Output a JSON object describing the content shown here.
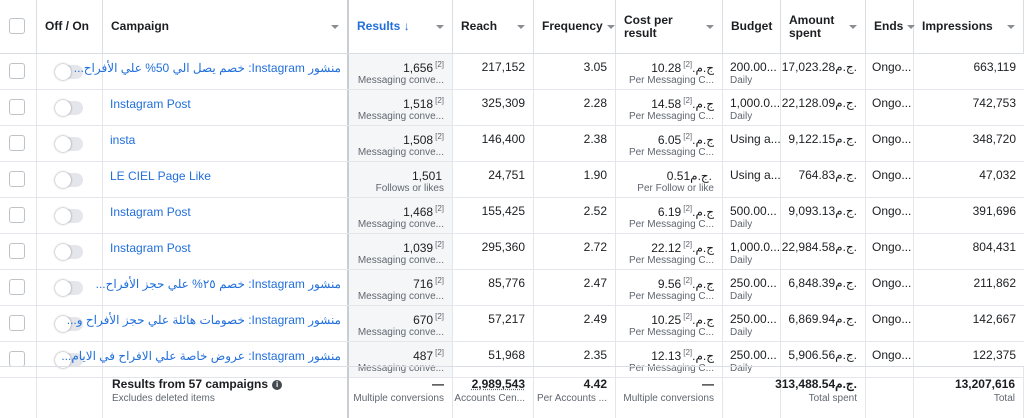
{
  "headers": {
    "off_on": "Off / On",
    "campaign": "Campaign",
    "results": "Results",
    "results_arrow": "↓",
    "reach": "Reach",
    "frequency": "Frequency",
    "cost_per_result": "Cost per result",
    "budget": "Budget",
    "amount_spent": "Amount spent",
    "ends": "Ends",
    "impressions": "Impressions"
  },
  "rows": [
    {
      "campaign": "منشور Instagram: خصم يصل الي 50% علي الأفراح...",
      "rtl": true,
      "results": "1,656",
      "results_sup": "[2]",
      "results_sub": "Messaging conve...",
      "reach": "217,152",
      "frequency": "3.05",
      "cpr": "10.28ج.م.",
      "cpr_sup": "[2]",
      "cpr_sub": "Per Messaging C...",
      "budget": "200.00...",
      "budget_sub": "Daily",
      "amount": "17,023.28ج.م.",
      "ends": "Ongo...",
      "impressions": "663,119",
      "dotted": true
    },
    {
      "campaign": "Instagram Post",
      "rtl": false,
      "results": "1,518",
      "results_sup": "[2]",
      "results_sub": "Messaging conve...",
      "reach": "325,309",
      "frequency": "2.28",
      "cpr": "14.58ج.م.",
      "cpr_sup": "[2]",
      "cpr_sub": "Per Messaging C...",
      "budget": "1,000.0...",
      "budget_sub": "Daily",
      "amount": "22,128.09ج.م.",
      "ends": "Ongo...",
      "impressions": "742,753",
      "dotted": true
    },
    {
      "campaign": "insta",
      "rtl": false,
      "results": "1,508",
      "results_sup": "[2]",
      "results_sub": "Messaging conve...",
      "reach": "146,400",
      "frequency": "2.38",
      "cpr": "6.05ج.م.",
      "cpr_sup": "[2]",
      "cpr_sub": "Per Messaging C...",
      "budget": "Using a...",
      "budget_sub": "",
      "amount": "9,122.15ج.م.",
      "ends": "Ongo...",
      "impressions": "348,720",
      "dotted": true
    },
    {
      "campaign": "LE CIEL Page Like",
      "rtl": false,
      "results": "1,501",
      "results_sup": "",
      "results_sub": "Follows or likes",
      "reach": "24,751",
      "frequency": "1.90",
      "cpr": "0.51ج.م.",
      "cpr_sup": "",
      "cpr_sub": "Per Follow or like",
      "budget": "Using a...",
      "budget_sub": "",
      "amount": "764.83ج.م.",
      "ends": "Ongo...",
      "impressions": "47,032",
      "dotted": false
    },
    {
      "campaign": "Instagram Post",
      "rtl": false,
      "results": "1,468",
      "results_sup": "[2]",
      "results_sub": "Messaging conve...",
      "reach": "155,425",
      "frequency": "2.52",
      "cpr": "6.19ج.م.",
      "cpr_sup": "[2]",
      "cpr_sub": "Per Messaging C...",
      "budget": "500.00...",
      "budget_sub": "Daily",
      "amount": "9,093.13ج.م.",
      "ends": "Ongo...",
      "impressions": "391,696",
      "dotted": true
    },
    {
      "campaign": "Instagram Post",
      "rtl": false,
      "results": "1,039",
      "results_sup": "[2]",
      "results_sub": "Messaging conve...",
      "reach": "295,360",
      "frequency": "2.72",
      "cpr": "22.12ج.م.",
      "cpr_sup": "[2]",
      "cpr_sub": "Per Messaging C...",
      "budget": "1,000.0...",
      "budget_sub": "Daily",
      "amount": "22,984.58ج.م.",
      "ends": "Ongo...",
      "impressions": "804,431",
      "dotted": true
    },
    {
      "campaign": "منشور Instagram: خصم ٢٥% علي حجز الأفراح...",
      "rtl": true,
      "results": "716",
      "results_sup": "[2]",
      "results_sub": "Messaging conve...",
      "reach": "85,776",
      "frequency": "2.47",
      "cpr": "9.56ج.م.",
      "cpr_sup": "[2]",
      "cpr_sub": "Per Messaging C...",
      "budget": "250.00...",
      "budget_sub": "Daily",
      "amount": "6,848.39ج.م.",
      "ends": "Ongo...",
      "impressions": "211,862",
      "dotted": true
    },
    {
      "campaign": "منشور Instagram: خصومات هائلة علي حجز الأفراح و...",
      "rtl": true,
      "results": "670",
      "results_sup": "[2]",
      "results_sub": "Messaging conve...",
      "reach": "57,217",
      "frequency": "2.49",
      "cpr": "10.25ج.م.",
      "cpr_sup": "[2]",
      "cpr_sub": "Per Messaging C...",
      "budget": "250.00...",
      "budget_sub": "Daily",
      "amount": "6,869.94ج.م.",
      "ends": "Ongo...",
      "impressions": "142,667",
      "dotted": true
    },
    {
      "campaign": "منشور Instagram: عروض خاصة علي الافراح في الايام...",
      "rtl": true,
      "results": "487",
      "results_sup": "[2]",
      "results_sub": "Messaging conve...",
      "reach": "51,968",
      "frequency": "2.35",
      "cpr": "12.13ج.م.",
      "cpr_sup": "[2]",
      "cpr_sub": "Per Messaging C...",
      "budget": "250.00...",
      "budget_sub": "Daily",
      "amount": "5,906.56ج.م.",
      "ends": "Ongo...",
      "impressions": "122,375",
      "dotted": true
    }
  ],
  "footer": {
    "title": "Results from 57 campaigns",
    "subtitle": "Excludes deleted items",
    "results": "—",
    "results_sub": "Multiple conversions",
    "reach": "2,989,543",
    "reach_sub": "Accounts Cen...",
    "frequency": "4.42",
    "frequency_sub": "Per Accounts ...",
    "cpr": "—",
    "cpr_sub": "Multiple conversions",
    "amount": "313,488.54ج.م.",
    "amount_sub": "Total spent",
    "impressions": "13,207,616",
    "impressions_sub": "Total"
  },
  "colors": {
    "link": "#216fdb",
    "muted": "#606770",
    "border": "#e4e6eb"
  }
}
